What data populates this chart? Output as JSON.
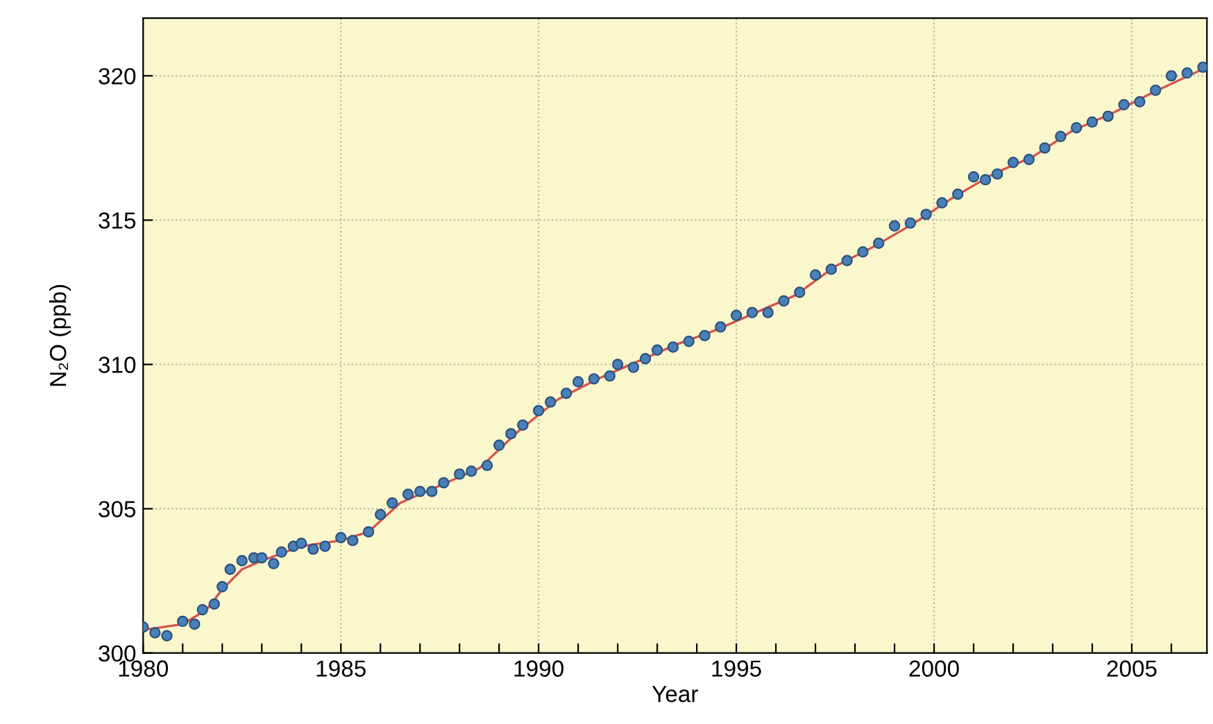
{
  "chart_data": {
    "type": "scatter",
    "xlabel": "Year",
    "ylabel": "N₂O (ppb)",
    "xlim": [
      1980,
      2006.9
    ],
    "ylim": [
      300,
      322
    ],
    "xticks": [
      1980,
      {
        "value": 1981,
        "label": null
      },
      {
        "value": 1982,
        "label": null
      },
      {
        "value": 1983,
        "label": null
      },
      {
        "value": 1984,
        "label": null
      },
      1985,
      {
        "value": 1986,
        "label": null
      },
      {
        "value": 1987,
        "label": null
      },
      {
        "value": 1988,
        "label": null
      },
      {
        "value": 1989,
        "label": null
      },
      1990,
      {
        "value": 1991,
        "label": null
      },
      {
        "value": 1992,
        "label": null
      },
      {
        "value": 1993,
        "label": null
      },
      {
        "value": 1994,
        "label": null
      },
      1995,
      {
        "value": 1996,
        "label": null
      },
      {
        "value": 1997,
        "label": null
      },
      {
        "value": 1998,
        "label": null
      },
      {
        "value": 1999,
        "label": null
      },
      2000,
      {
        "value": 2001,
        "label": null
      },
      {
        "value": 2002,
        "label": null
      },
      {
        "value": 2003,
        "label": null
      },
      {
        "value": 2004,
        "label": null
      },
      2005,
      {
        "value": 2006,
        "label": null
      }
    ],
    "yticks": [
      300,
      305,
      310,
      315,
      320
    ],
    "grid": true,
    "series": [
      {
        "type": "line",
        "color": "#d9534f",
        "line_style": "solid",
        "marker": "none",
        "x": [
          1980.0,
          1981.0,
          1981.6,
          1982.0,
          1982.5,
          1983.0,
          1984.0,
          1985.0,
          1985.7,
          1986.5,
          1987.5,
          1988.5,
          1989.5,
          1990.5,
          1991.5,
          1992.5,
          1993.5,
          1994.5,
          1995.5,
          1996.5,
          1997.5,
          1998.5,
          1999.5,
          2000.5,
          2001.5,
          2002.5,
          2003.5,
          2004.5,
          2005.5,
          2006.9
        ],
        "values": [
          300.8,
          301.0,
          301.5,
          302.2,
          302.9,
          303.2,
          303.7,
          303.9,
          304.2,
          305.2,
          305.8,
          306.4,
          307.7,
          308.8,
          309.5,
          310.1,
          310.7,
          311.2,
          311.8,
          312.4,
          313.4,
          314.1,
          314.9,
          315.8,
          316.6,
          317.2,
          318.1,
          318.7,
          319.4,
          320.3
        ]
      },
      {
        "color": "#4a80b8",
        "marker": "circle",
        "x": [
          1980.0,
          1980.3,
          1980.6,
          1981.0,
          1981.3,
          1981.5,
          1981.8,
          1982.0,
          1982.2,
          1982.5,
          1982.8,
          1983.0,
          1983.3,
          1983.5,
          1983.8,
          1984.0,
          1984.3,
          1984.6,
          1985.0,
          1985.3,
          1985.7,
          1986.0,
          1986.3,
          1986.7,
          1987.0,
          1987.3,
          1987.6,
          1988.0,
          1988.3,
          1988.7,
          1989.0,
          1989.3,
          1989.6,
          1990.0,
          1990.3,
          1990.7,
          1991.0,
          1991.4,
          1991.8,
          1992.0,
          1992.4,
          1992.7,
          1993.0,
          1993.4,
          1993.8,
          1994.2,
          1994.6,
          1995.0,
          1995.4,
          1995.8,
          1996.2,
          1996.6,
          1997.0,
          1997.4,
          1997.8,
          1998.2,
          1998.6,
          1999.0,
          1999.4,
          1999.8,
          2000.2,
          2000.6,
          2001.0,
          2001.3,
          2001.6,
          2002.0,
          2002.4,
          2002.8,
          2003.2,
          2003.6,
          2004.0,
          2004.4,
          2004.8,
          2005.2,
          2005.6,
          2006.0,
          2006.4,
          2006.8
        ],
        "values": [
          300.9,
          300.7,
          300.6,
          301.1,
          301.0,
          301.5,
          301.7,
          302.3,
          302.9,
          303.2,
          303.3,
          303.3,
          303.1,
          303.5,
          303.7,
          303.8,
          303.6,
          303.7,
          304.0,
          303.9,
          304.2,
          304.8,
          305.2,
          305.5,
          305.6,
          305.6,
          305.9,
          306.2,
          306.3,
          306.5,
          307.2,
          307.6,
          307.9,
          308.4,
          308.7,
          309.0,
          309.4,
          309.5,
          309.6,
          310.0,
          309.9,
          310.2,
          310.5,
          310.6,
          310.8,
          311.0,
          311.3,
          311.7,
          311.8,
          311.8,
          312.2,
          312.5,
          313.1,
          313.3,
          313.6,
          313.9,
          314.2,
          314.8,
          314.9,
          315.2,
          315.6,
          315.9,
          316.5,
          316.4,
          316.6,
          317.0,
          317.1,
          317.5,
          317.9,
          318.2,
          318.4,
          318.6,
          319.0,
          319.1,
          319.5,
          320.0,
          320.1,
          320.3
        ]
      }
    ]
  }
}
